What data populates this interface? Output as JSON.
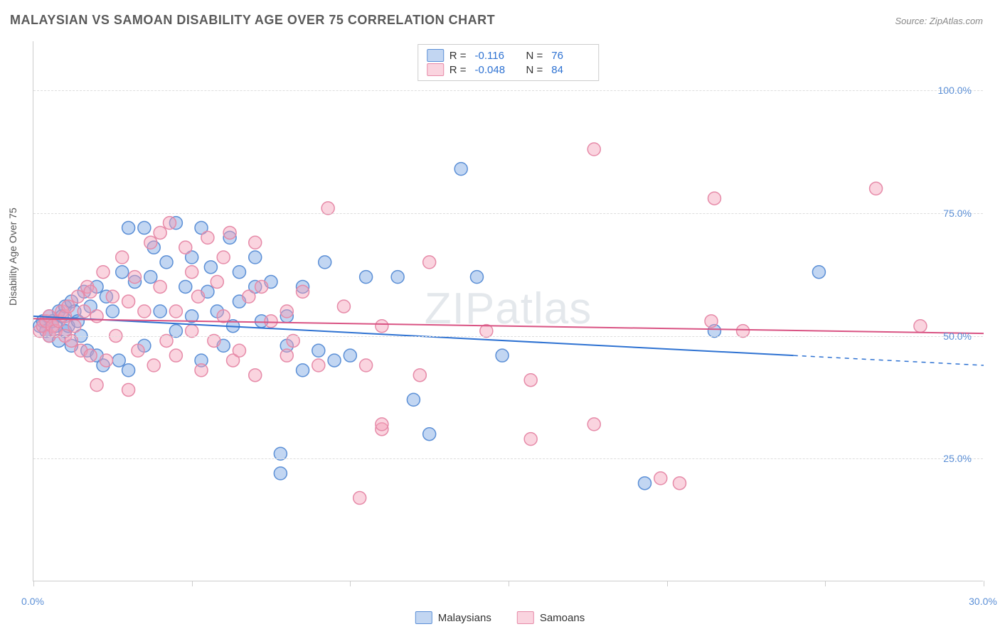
{
  "chart": {
    "type": "scatter",
    "title": "MALAYSIAN VS SAMOAN DISABILITY AGE OVER 75 CORRELATION CHART",
    "source_label": "Source: ZipAtlas.com",
    "watermark": "ZIPatlas",
    "y_axis_label": "Disability Age Over 75",
    "xlim": [
      0,
      30
    ],
    "ylim": [
      0,
      110
    ],
    "x_ticks": [
      0,
      5,
      10,
      15,
      20,
      25,
      30
    ],
    "x_tick_labels": {
      "0": "0.0%",
      "30": "30.0%"
    },
    "y_grid": [
      25,
      50,
      75,
      100
    ],
    "y_tick_labels": {
      "25": "25.0%",
      "50": "50.0%",
      "75": "75.0%",
      "100": "100.0%"
    },
    "background_color": "#ffffff",
    "grid_color": "#dddddd",
    "axis_color": "#cccccc",
    "tick_label_color": "#5b8fd6",
    "marker_radius": 9,
    "marker_stroke_width": 1.5,
    "trend_line_width": 2,
    "series": [
      {
        "name": "Malaysians",
        "fill": "rgba(120,165,226,0.45)",
        "stroke": "#5b8fd6",
        "trend_color": "#2e72d2",
        "r_value": "-0.116",
        "n_value": "76",
        "trend": {
          "x0": 0,
          "y0": 54,
          "x1": 24,
          "y1": 46,
          "x_dash_to": 30,
          "y_dash_to": 44
        },
        "points": [
          [
            0.2,
            52
          ],
          [
            0.3,
            53
          ],
          [
            0.4,
            51
          ],
          [
            0.5,
            54
          ],
          [
            0.5,
            50
          ],
          [
            0.6,
            53
          ],
          [
            0.7,
            52
          ],
          [
            0.8,
            55
          ],
          [
            0.8,
            49
          ],
          [
            0.9,
            54
          ],
          [
            1.0,
            56
          ],
          [
            1.0,
            51
          ],
          [
            1.1,
            52
          ],
          [
            1.2,
            57
          ],
          [
            1.2,
            48
          ],
          [
            1.3,
            55
          ],
          [
            1.4,
            53
          ],
          [
            1.5,
            50
          ],
          [
            1.6,
            59
          ],
          [
            1.7,
            47
          ],
          [
            1.8,
            56
          ],
          [
            2.0,
            46
          ],
          [
            2.0,
            60
          ],
          [
            2.2,
            44
          ],
          [
            2.3,
            58
          ],
          [
            2.5,
            55
          ],
          [
            2.7,
            45
          ],
          [
            2.8,
            63
          ],
          [
            3.0,
            72
          ],
          [
            3.0,
            43
          ],
          [
            3.2,
            61
          ],
          [
            3.5,
            72
          ],
          [
            3.5,
            48
          ],
          [
            3.7,
            62
          ],
          [
            3.8,
            68
          ],
          [
            4.0,
            55
          ],
          [
            4.2,
            65
          ],
          [
            4.5,
            73
          ],
          [
            4.5,
            51
          ],
          [
            4.8,
            60
          ],
          [
            5.0,
            66
          ],
          [
            5.0,
            54
          ],
          [
            5.3,
            72
          ],
          [
            5.3,
            45
          ],
          [
            5.5,
            59
          ],
          [
            5.6,
            64
          ],
          [
            5.8,
            55
          ],
          [
            6.0,
            48
          ],
          [
            6.2,
            70
          ],
          [
            6.3,
            52
          ],
          [
            6.5,
            63
          ],
          [
            6.5,
            57
          ],
          [
            7.0,
            66
          ],
          [
            7.0,
            60
          ],
          [
            7.2,
            53
          ],
          [
            7.5,
            61
          ],
          [
            7.8,
            26
          ],
          [
            7.8,
            22
          ],
          [
            8.0,
            48
          ],
          [
            8.0,
            54
          ],
          [
            8.5,
            43
          ],
          [
            8.5,
            60
          ],
          [
            9.0,
            47
          ],
          [
            9.2,
            65
          ],
          [
            9.5,
            45
          ],
          [
            10.0,
            46
          ],
          [
            10.5,
            62
          ],
          [
            11.5,
            62
          ],
          [
            12.0,
            37
          ],
          [
            12.5,
            30
          ],
          [
            13.5,
            84
          ],
          [
            14.0,
            62
          ],
          [
            14.8,
            46
          ],
          [
            19.3,
            20
          ],
          [
            21.5,
            51
          ],
          [
            24.8,
            63
          ]
        ]
      },
      {
        "name": "Samoans",
        "fill": "rgba(244,160,185,0.45)",
        "stroke": "#e68aa8",
        "trend_color": "#d95383",
        "r_value": "-0.048",
        "n_value": "84",
        "trend": {
          "x0": 0,
          "y0": 53.5,
          "x1": 30,
          "y1": 50.5
        },
        "points": [
          [
            0.2,
            51
          ],
          [
            0.3,
            52
          ],
          [
            0.4,
            53
          ],
          [
            0.5,
            50
          ],
          [
            0.5,
            54
          ],
          [
            0.6,
            52
          ],
          [
            0.7,
            51
          ],
          [
            0.8,
            53
          ],
          [
            0.9,
            55
          ],
          [
            1.0,
            50
          ],
          [
            1.0,
            54
          ],
          [
            1.1,
            56
          ],
          [
            1.2,
            49
          ],
          [
            1.3,
            52
          ],
          [
            1.4,
            58
          ],
          [
            1.5,
            47
          ],
          [
            1.6,
            55
          ],
          [
            1.7,
            60
          ],
          [
            1.8,
            46
          ],
          [
            1.8,
            59
          ],
          [
            2.0,
            40
          ],
          [
            2.0,
            54
          ],
          [
            2.2,
            63
          ],
          [
            2.3,
            45
          ],
          [
            2.5,
            58
          ],
          [
            2.6,
            50
          ],
          [
            2.8,
            66
          ],
          [
            3.0,
            39
          ],
          [
            3.0,
            57
          ],
          [
            3.2,
            62
          ],
          [
            3.3,
            47
          ],
          [
            3.5,
            55
          ],
          [
            3.7,
            69
          ],
          [
            3.8,
            44
          ],
          [
            4.0,
            60
          ],
          [
            4.0,
            71
          ],
          [
            4.2,
            49
          ],
          [
            4.3,
            73
          ],
          [
            4.5,
            55
          ],
          [
            4.5,
            46
          ],
          [
            4.8,
            68
          ],
          [
            5.0,
            51
          ],
          [
            5.0,
            63
          ],
          [
            5.2,
            58
          ],
          [
            5.3,
            43
          ],
          [
            5.5,
            70
          ],
          [
            5.7,
            49
          ],
          [
            5.8,
            61
          ],
          [
            6.0,
            54
          ],
          [
            6.0,
            66
          ],
          [
            6.2,
            71
          ],
          [
            6.3,
            45
          ],
          [
            6.5,
            47
          ],
          [
            6.8,
            58
          ],
          [
            7.0,
            69
          ],
          [
            7.0,
            42
          ],
          [
            7.2,
            60
          ],
          [
            7.5,
            53
          ],
          [
            8.0,
            46
          ],
          [
            8.0,
            55
          ],
          [
            8.2,
            49
          ],
          [
            8.5,
            59
          ],
          [
            9.0,
            44
          ],
          [
            9.3,
            76
          ],
          [
            9.8,
            56
          ],
          [
            10.3,
            17
          ],
          [
            10.5,
            44
          ],
          [
            11.0,
            31
          ],
          [
            11.0,
            32
          ],
          [
            11.0,
            52
          ],
          [
            12.2,
            42
          ],
          [
            12.5,
            65
          ],
          [
            14.3,
            51
          ],
          [
            15.7,
            29
          ],
          [
            15.7,
            41
          ],
          [
            17.7,
            88
          ],
          [
            17.7,
            32
          ],
          [
            19.8,
            21
          ],
          [
            20.4,
            20
          ],
          [
            21.4,
            53
          ],
          [
            21.5,
            78
          ],
          [
            22.4,
            51
          ],
          [
            26.6,
            80
          ],
          [
            28.0,
            52
          ]
        ]
      }
    ],
    "legend": {
      "r_label": "R =",
      "n_label": "N ="
    },
    "bottom_legend": {
      "items": [
        "Malaysians",
        "Samoans"
      ]
    }
  }
}
